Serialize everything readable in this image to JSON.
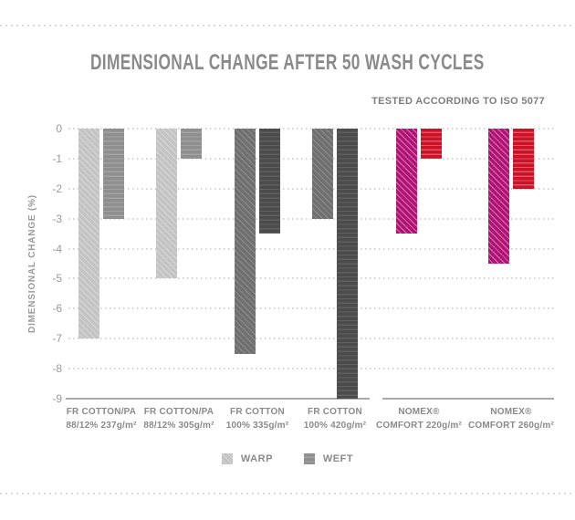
{
  "page": {
    "title": "DIMENSIONAL CHANGE AFTER 50 WASH CYCLES",
    "subtitle": "TESTED ACCORDING TO ISO 5077"
  },
  "legend": {
    "warp_label": "WARP",
    "weft_label": "WEFT"
  },
  "chart_data": {
    "type": "bar",
    "title": "DIMENSIONAL CHANGE AFTER 50 WASH CYCLES",
    "subtitle": "TESTED ACCORDING TO ISO 5077",
    "xlabel": "",
    "ylabel": "DIMENSIONAL CHANGE (%)",
    "ylim": [
      0,
      -9
    ],
    "yticks": [
      "0",
      "-1",
      "-2",
      "-3",
      "-4",
      "-5",
      "-6",
      "-7",
      "-8",
      "-9"
    ],
    "grid": "dotted horizontal",
    "legend_position": "bottom",
    "categories": [
      {
        "line1": "FR COTTON/PA",
        "line2": "88/12% 237g/m²",
        "palette": "cotton_pa"
      },
      {
        "line1": "FR COTTON/PA",
        "line2": "88/12% 305g/m²",
        "palette": "cotton_pa"
      },
      {
        "line1": "FR COTTON",
        "line2": "100% 335g/m²",
        "palette": "cotton"
      },
      {
        "line1": "FR COTTON",
        "line2": "100% 420g/m²",
        "palette": "cotton"
      },
      {
        "line1": "NOMEX®",
        "line2": "COMFORT 220g/m²",
        "palette": "nomex"
      },
      {
        "line1": "NOMEX®",
        "line2": "COMFORT 260g/m²",
        "palette": "nomex"
      }
    ],
    "series": [
      {
        "name": "WARP",
        "hatch": "diagonal",
        "values": [
          -7,
          -5,
          -7.5,
          -3,
          -3.5,
          -4.5
        ]
      },
      {
        "name": "WEFT",
        "hatch": "horizontal",
        "values": [
          -3,
          -1,
          -3.5,
          -9,
          -1,
          -2
        ]
      }
    ],
    "palettes": {
      "cotton_pa": {
        "warp_base": "#c3c3c3",
        "warp_stripe": "#d3d3d3",
        "weft_base": "#8f8f8f",
        "weft_stripe": "#a3a3a3"
      },
      "cotton": {
        "warp_base": "#6f6f6f",
        "warp_stripe": "#868686",
        "weft_base": "#4c4c4c",
        "weft_stripe": "#606060"
      },
      "nomex": {
        "warp_base": "#b01172",
        "warp_stripe": "#ce64a8",
        "weft_base": "#cb1126",
        "weft_stripe": "#e25766"
      }
    }
  }
}
